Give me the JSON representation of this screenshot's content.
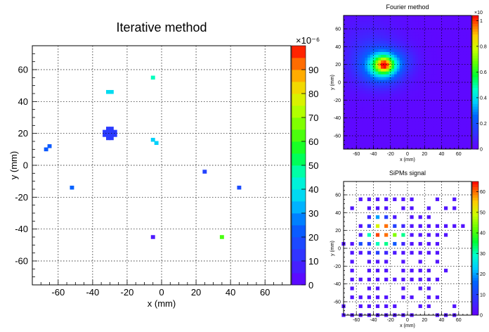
{
  "chart_data": [
    {
      "id": "iterative",
      "type": "heatmap",
      "title": "Iterative method",
      "xlabel": "x (mm)",
      "ylabel": "y (mm)",
      "xlim": [
        -75,
        75
      ],
      "ylim": [
        -75,
        75
      ],
      "x_ticks": [
        -60,
        -40,
        -20,
        0,
        20,
        40,
        60
      ],
      "y_ticks": [
        -60,
        -40,
        -20,
        0,
        20,
        40,
        60
      ],
      "grid": true,
      "z_range": [
        0,
        0.0001
      ],
      "colorbar_exponent": "×10⁻⁶",
      "colorbar_ticks": [
        0,
        10,
        20,
        30,
        40,
        50,
        60,
        70,
        80,
        90
      ],
      "cells": [
        {
          "x": -33,
          "y": 21,
          "v": 14
        },
        {
          "x": -31,
          "y": 21,
          "v": 14
        },
        {
          "x": -29,
          "y": 21,
          "v": 14
        },
        {
          "x": -27,
          "y": 21,
          "v": 14
        },
        {
          "x": -33,
          "y": 19,
          "v": 14
        },
        {
          "x": -31,
          "y": 19,
          "v": 14
        },
        {
          "x": -29,
          "y": 19,
          "v": 14
        },
        {
          "x": -27,
          "y": 19,
          "v": 14
        },
        {
          "x": -31,
          "y": 23,
          "v": 14
        },
        {
          "x": -29,
          "y": 23,
          "v": 14
        },
        {
          "x": -31,
          "y": 17,
          "v": 14
        },
        {
          "x": -29,
          "y": 17,
          "v": 14
        },
        {
          "x": -31,
          "y": 46,
          "v": 38
        },
        {
          "x": -29,
          "y": 46,
          "v": 38
        },
        {
          "x": -5,
          "y": 55,
          "v": 46
        },
        {
          "x": -5,
          "y": 16,
          "v": 36
        },
        {
          "x": -3,
          "y": 14,
          "v": 36
        },
        {
          "x": -67,
          "y": 10,
          "v": 22
        },
        {
          "x": -65,
          "y": 12,
          "v": 22
        },
        {
          "x": 25,
          "y": -4,
          "v": 16
        },
        {
          "x": -52,
          "y": -14,
          "v": 24
        },
        {
          "x": 45,
          "y": -14,
          "v": 18
        },
        {
          "x": -5,
          "y": -45,
          "v": 6
        },
        {
          "x": 35,
          "y": -45,
          "v": 62
        }
      ]
    },
    {
      "id": "fourier",
      "type": "heatmap",
      "title": "Fourier method",
      "xlabel": "x (mm)",
      "ylabel": "y (mm)",
      "xlim": [
        -75,
        75
      ],
      "ylim": [
        -75,
        75
      ],
      "x_ticks": [
        -60,
        -40,
        -20,
        0,
        20,
        40,
        60
      ],
      "y_ticks": [
        -60,
        -40,
        -20,
        0,
        20,
        40,
        60
      ],
      "grid": true,
      "z_range": [
        0,
        1e-05
      ],
      "colorbar_exponent": "×10",
      "colorbar_ticks": [
        0,
        0.2,
        0.4,
        0.6,
        0.8,
        1
      ],
      "blobs": [
        {
          "x": -30,
          "y": 18,
          "sx": 18,
          "sy": 14,
          "amp": 0.3
        },
        {
          "x": -28,
          "y": 20,
          "sx": 10,
          "sy": 8,
          "amp": 0.45
        },
        {
          "x": -27,
          "y": 20,
          "sx": 5,
          "sy": 4.5,
          "amp": 0.3
        },
        {
          "x": -45,
          "y": 35,
          "sx": 25,
          "sy": 25,
          "amp": 0.08
        },
        {
          "x": -5,
          "y": 25,
          "sx": 12,
          "sy": 10,
          "amp": 0.05
        }
      ]
    },
    {
      "id": "sipms",
      "type": "heatmap",
      "title": "SiPMs signal",
      "xlabel": "x (mm)",
      "ylabel": "y (mm)",
      "xlim": [
        -75,
        75
      ],
      "ylim": [
        -75,
        75
      ],
      "x_ticks": [
        -60,
        -40,
        -20,
        0,
        20,
        40,
        60
      ],
      "y_ticks": [
        -60,
        -40,
        -20,
        0,
        20,
        40,
        60
      ],
      "grid": true,
      "z_range": [
        0,
        65
      ],
      "colorbar_ticks": [
        0,
        10,
        20,
        30,
        40,
        50,
        60
      ],
      "cells": [
        {
          "x": -55,
          "y": 55,
          "v": 3
        },
        {
          "x": -45,
          "y": 55,
          "v": 3
        },
        {
          "x": -35,
          "y": 55,
          "v": 3
        },
        {
          "x": -25,
          "y": 55,
          "v": 3
        },
        {
          "x": -15,
          "y": 55,
          "v": 3
        },
        {
          "x": -5,
          "y": 55,
          "v": 3
        },
        {
          "x": 5,
          "y": 55,
          "v": 3
        },
        {
          "x": 35,
          "y": 55,
          "v": 3
        },
        {
          "x": 55,
          "y": 55,
          "v": 3
        },
        {
          "x": -65,
          "y": 45,
          "v": 3
        },
        {
          "x": -45,
          "y": 45,
          "v": 3
        },
        {
          "x": -35,
          "y": 45,
          "v": 3
        },
        {
          "x": -25,
          "y": 45,
          "v": 3
        },
        {
          "x": -5,
          "y": 45,
          "v": 3
        },
        {
          "x": 5,
          "y": 45,
          "v": 3
        },
        {
          "x": 25,
          "y": 45,
          "v": 3
        },
        {
          "x": 45,
          "y": 45,
          "v": 3
        },
        {
          "x": 55,
          "y": 45,
          "v": 3
        },
        {
          "x": -45,
          "y": 35,
          "v": 6
        },
        {
          "x": -35,
          "y": 35,
          "v": 20
        },
        {
          "x": -25,
          "y": 35,
          "v": 10
        },
        {
          "x": -15,
          "y": 35,
          "v": 4
        },
        {
          "x": 5,
          "y": 35,
          "v": 3
        },
        {
          "x": 15,
          "y": 35,
          "v": 3
        },
        {
          "x": 25,
          "y": 35,
          "v": 3
        },
        {
          "x": -55,
          "y": 25,
          "v": 3
        },
        {
          "x": -45,
          "y": 25,
          "v": 8
        },
        {
          "x": -35,
          "y": 25,
          "v": 50
        },
        {
          "x": -25,
          "y": 25,
          "v": 60
        },
        {
          "x": -15,
          "y": 25,
          "v": 10
        },
        {
          "x": -5,
          "y": 25,
          "v": 6
        },
        {
          "x": 5,
          "y": 25,
          "v": 3
        },
        {
          "x": 15,
          "y": 25,
          "v": 3
        },
        {
          "x": 25,
          "y": 25,
          "v": 3
        },
        {
          "x": 35,
          "y": 25,
          "v": 3
        },
        {
          "x": 45,
          "y": 25,
          "v": 3
        },
        {
          "x": 55,
          "y": 25,
          "v": 3
        },
        {
          "x": 65,
          "y": 25,
          "v": 3
        },
        {
          "x": -55,
          "y": 15,
          "v": 4
        },
        {
          "x": -45,
          "y": 15,
          "v": 30
        },
        {
          "x": -35,
          "y": 15,
          "v": 62
        },
        {
          "x": -25,
          "y": 15,
          "v": 60
        },
        {
          "x": -15,
          "y": 15,
          "v": 44
        },
        {
          "x": -5,
          "y": 15,
          "v": 32
        },
        {
          "x": 5,
          "y": 15,
          "v": 3
        },
        {
          "x": 15,
          "y": 15,
          "v": 3
        },
        {
          "x": 25,
          "y": 15,
          "v": 3
        },
        {
          "x": 35,
          "y": 15,
          "v": 3
        },
        {
          "x": 45,
          "y": 15,
          "v": 3
        },
        {
          "x": -75,
          "y": 5,
          "v": 3
        },
        {
          "x": -65,
          "y": 5,
          "v": 3
        },
        {
          "x": -55,
          "y": 5,
          "v": 12
        },
        {
          "x": -45,
          "y": 5,
          "v": 10
        },
        {
          "x": -35,
          "y": 5,
          "v": 30
        },
        {
          "x": -25,
          "y": 5,
          "v": 32
        },
        {
          "x": -15,
          "y": 5,
          "v": 14
        },
        {
          "x": -5,
          "y": 5,
          "v": 6
        },
        {
          "x": 5,
          "y": 5,
          "v": 3
        },
        {
          "x": 15,
          "y": 5,
          "v": 3
        },
        {
          "x": 25,
          "y": 5,
          "v": 3
        },
        {
          "x": 35,
          "y": 5,
          "v": 3
        },
        {
          "x": -65,
          "y": -5,
          "v": 3
        },
        {
          "x": -55,
          "y": -5,
          "v": 3
        },
        {
          "x": -45,
          "y": -5,
          "v": 6
        },
        {
          "x": -35,
          "y": -5,
          "v": 10
        },
        {
          "x": -25,
          "y": -5,
          "v": 6
        },
        {
          "x": -15,
          "y": -5,
          "v": 4
        },
        {
          "x": -5,
          "y": -5,
          "v": 3
        },
        {
          "x": 5,
          "y": -5,
          "v": 3
        },
        {
          "x": 15,
          "y": -5,
          "v": 3
        },
        {
          "x": 25,
          "y": -5,
          "v": 3
        },
        {
          "x": 35,
          "y": -5,
          "v": 3
        },
        {
          "x": -65,
          "y": -15,
          "v": 3
        },
        {
          "x": -45,
          "y": -15,
          "v": 3
        },
        {
          "x": -35,
          "y": -15,
          "v": 3
        },
        {
          "x": -25,
          "y": -15,
          "v": 3
        },
        {
          "x": -5,
          "y": -15,
          "v": 3
        },
        {
          "x": 15,
          "y": -15,
          "v": 3
        },
        {
          "x": 35,
          "y": -15,
          "v": 3
        },
        {
          "x": -65,
          "y": -25,
          "v": 3
        },
        {
          "x": -45,
          "y": -25,
          "v": 3
        },
        {
          "x": -35,
          "y": -25,
          "v": 3
        },
        {
          "x": -25,
          "y": -25,
          "v": 3
        },
        {
          "x": -5,
          "y": -25,
          "v": 3
        },
        {
          "x": 5,
          "y": -25,
          "v": 3
        },
        {
          "x": 15,
          "y": -25,
          "v": 3
        },
        {
          "x": 25,
          "y": -25,
          "v": 3
        },
        {
          "x": 45,
          "y": -25,
          "v": 3
        },
        {
          "x": -65,
          "y": -35,
          "v": 3
        },
        {
          "x": -55,
          "y": -35,
          "v": 3
        },
        {
          "x": -45,
          "y": -35,
          "v": 3
        },
        {
          "x": -35,
          "y": -35,
          "v": 3
        },
        {
          "x": -25,
          "y": -35,
          "v": 3
        },
        {
          "x": -15,
          "y": -35,
          "v": 3
        },
        {
          "x": -5,
          "y": -35,
          "v": 3
        },
        {
          "x": 5,
          "y": -35,
          "v": 3
        },
        {
          "x": 15,
          "y": -35,
          "v": 3
        },
        {
          "x": 25,
          "y": -35,
          "v": 3
        },
        {
          "x": 35,
          "y": -35,
          "v": 3
        },
        {
          "x": -65,
          "y": -45,
          "v": 3
        },
        {
          "x": -45,
          "y": -45,
          "v": 3
        },
        {
          "x": -35,
          "y": -45,
          "v": 3
        },
        {
          "x": -5,
          "y": -45,
          "v": 3
        },
        {
          "x": 15,
          "y": -45,
          "v": 3
        },
        {
          "x": 25,
          "y": -45,
          "v": 3
        },
        {
          "x": -65,
          "y": -55,
          "v": 3
        },
        {
          "x": -55,
          "y": -55,
          "v": 3
        },
        {
          "x": -45,
          "y": -55,
          "v": 3
        },
        {
          "x": -35,
          "y": -55,
          "v": 3
        },
        {
          "x": -25,
          "y": -55,
          "v": 3
        },
        {
          "x": -5,
          "y": -55,
          "v": 3
        },
        {
          "x": 5,
          "y": -55,
          "v": 3
        },
        {
          "x": 25,
          "y": -55,
          "v": 3
        },
        {
          "x": 35,
          "y": -55,
          "v": 3
        },
        {
          "x": -75,
          "y": -65,
          "v": 3
        },
        {
          "x": -55,
          "y": -65,
          "v": 3
        },
        {
          "x": -45,
          "y": -65,
          "v": 3
        },
        {
          "x": -35,
          "y": -65,
          "v": 3
        },
        {
          "x": -25,
          "y": -65,
          "v": 3
        },
        {
          "x": -15,
          "y": -65,
          "v": 3
        },
        {
          "x": 15,
          "y": -65,
          "v": 3
        },
        {
          "x": 25,
          "y": -65,
          "v": 3
        },
        {
          "x": 55,
          "y": -65,
          "v": 3
        },
        {
          "x": -75,
          "y": -75,
          "v": 3
        },
        {
          "x": -65,
          "y": -75,
          "v": 3
        },
        {
          "x": -55,
          "y": -75,
          "v": 3
        },
        {
          "x": -45,
          "y": -75,
          "v": 3
        },
        {
          "x": -35,
          "y": -75,
          "v": 3
        },
        {
          "x": -25,
          "y": -75,
          "v": 3
        },
        {
          "x": -15,
          "y": -75,
          "v": 3
        },
        {
          "x": -5,
          "y": -75,
          "v": 3
        },
        {
          "x": 5,
          "y": -75,
          "v": 3
        },
        {
          "x": 35,
          "y": -75,
          "v": 3
        },
        {
          "x": 45,
          "y": -75,
          "v": 3
        },
        {
          "x": 55,
          "y": -75,
          "v": 3
        }
      ]
    }
  ]
}
